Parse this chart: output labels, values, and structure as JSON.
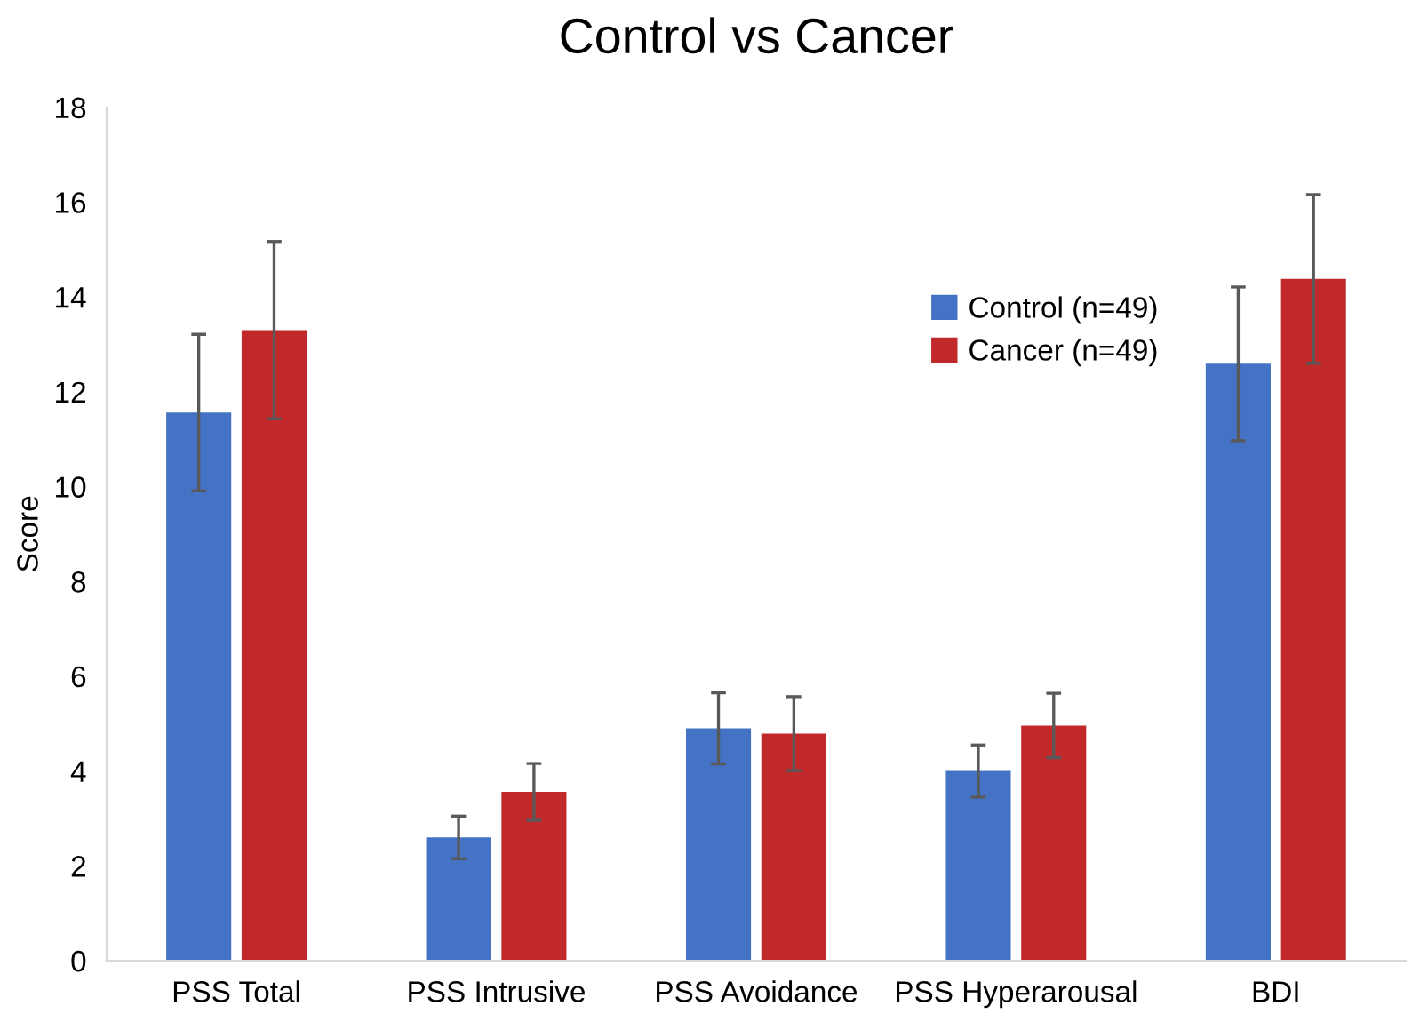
{
  "chart_data": {
    "type": "bar",
    "title": "Control vs Cancer",
    "ylabel": "Score",
    "categories": [
      "PSS Total",
      "PSS Intrusive",
      "PSS Avoidance",
      "PSS Hyperarousal",
      "BDI"
    ],
    "series": [
      {
        "name": "Control (n=49)",
        "color": "#4472c4",
        "values": [
          11.56,
          2.6,
          4.9,
          4.0,
          12.59
        ],
        "errors": [
          1.65,
          0.45,
          0.75,
          0.55,
          1.62
        ]
      },
      {
        "name": "Cancer (n=49)",
        "color": "#c0282a",
        "values": [
          13.3,
          3.56,
          4.79,
          4.96,
          14.38
        ],
        "errors": [
          1.87,
          0.6,
          0.78,
          0.68,
          1.78
        ]
      }
    ],
    "ylim": [
      0,
      18
    ],
    "yticks": [
      0,
      2,
      4,
      6,
      8,
      10,
      12,
      14,
      16,
      18
    ],
    "grid": false,
    "legend": "top right"
  }
}
